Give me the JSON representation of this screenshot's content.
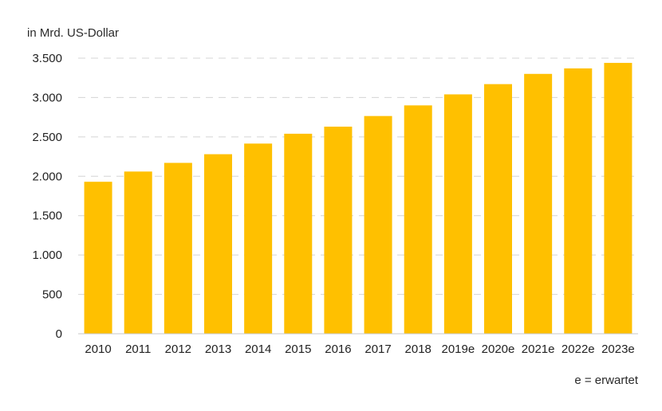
{
  "chart_data": {
    "type": "bar",
    "unit_label": "in Mrd. US-Dollar",
    "categories": [
      "2010",
      "2011",
      "2012",
      "2013",
      "2014",
      "2015",
      "2016",
      "2017",
      "2018",
      "2019e",
      "2020e",
      "2021e",
      "2022e",
      "2023e"
    ],
    "values": [
      1930,
      2060,
      2170,
      2280,
      2415,
      2540,
      2630,
      2765,
      2900,
      3040,
      3170,
      3300,
      3370,
      3440
    ],
    "ylim": [
      0,
      3500
    ],
    "yticks": [
      0,
      500,
      1000,
      1500,
      2000,
      2500,
      3000,
      3500
    ],
    "ytick_labels": [
      "0",
      "500",
      "1.000",
      "1.500",
      "2.000",
      "2.500",
      "3.000",
      "3.500"
    ],
    "bar_color": "#FFC000",
    "grid": true,
    "grid_style": "dashed",
    "footnote": "e = erwartet"
  }
}
